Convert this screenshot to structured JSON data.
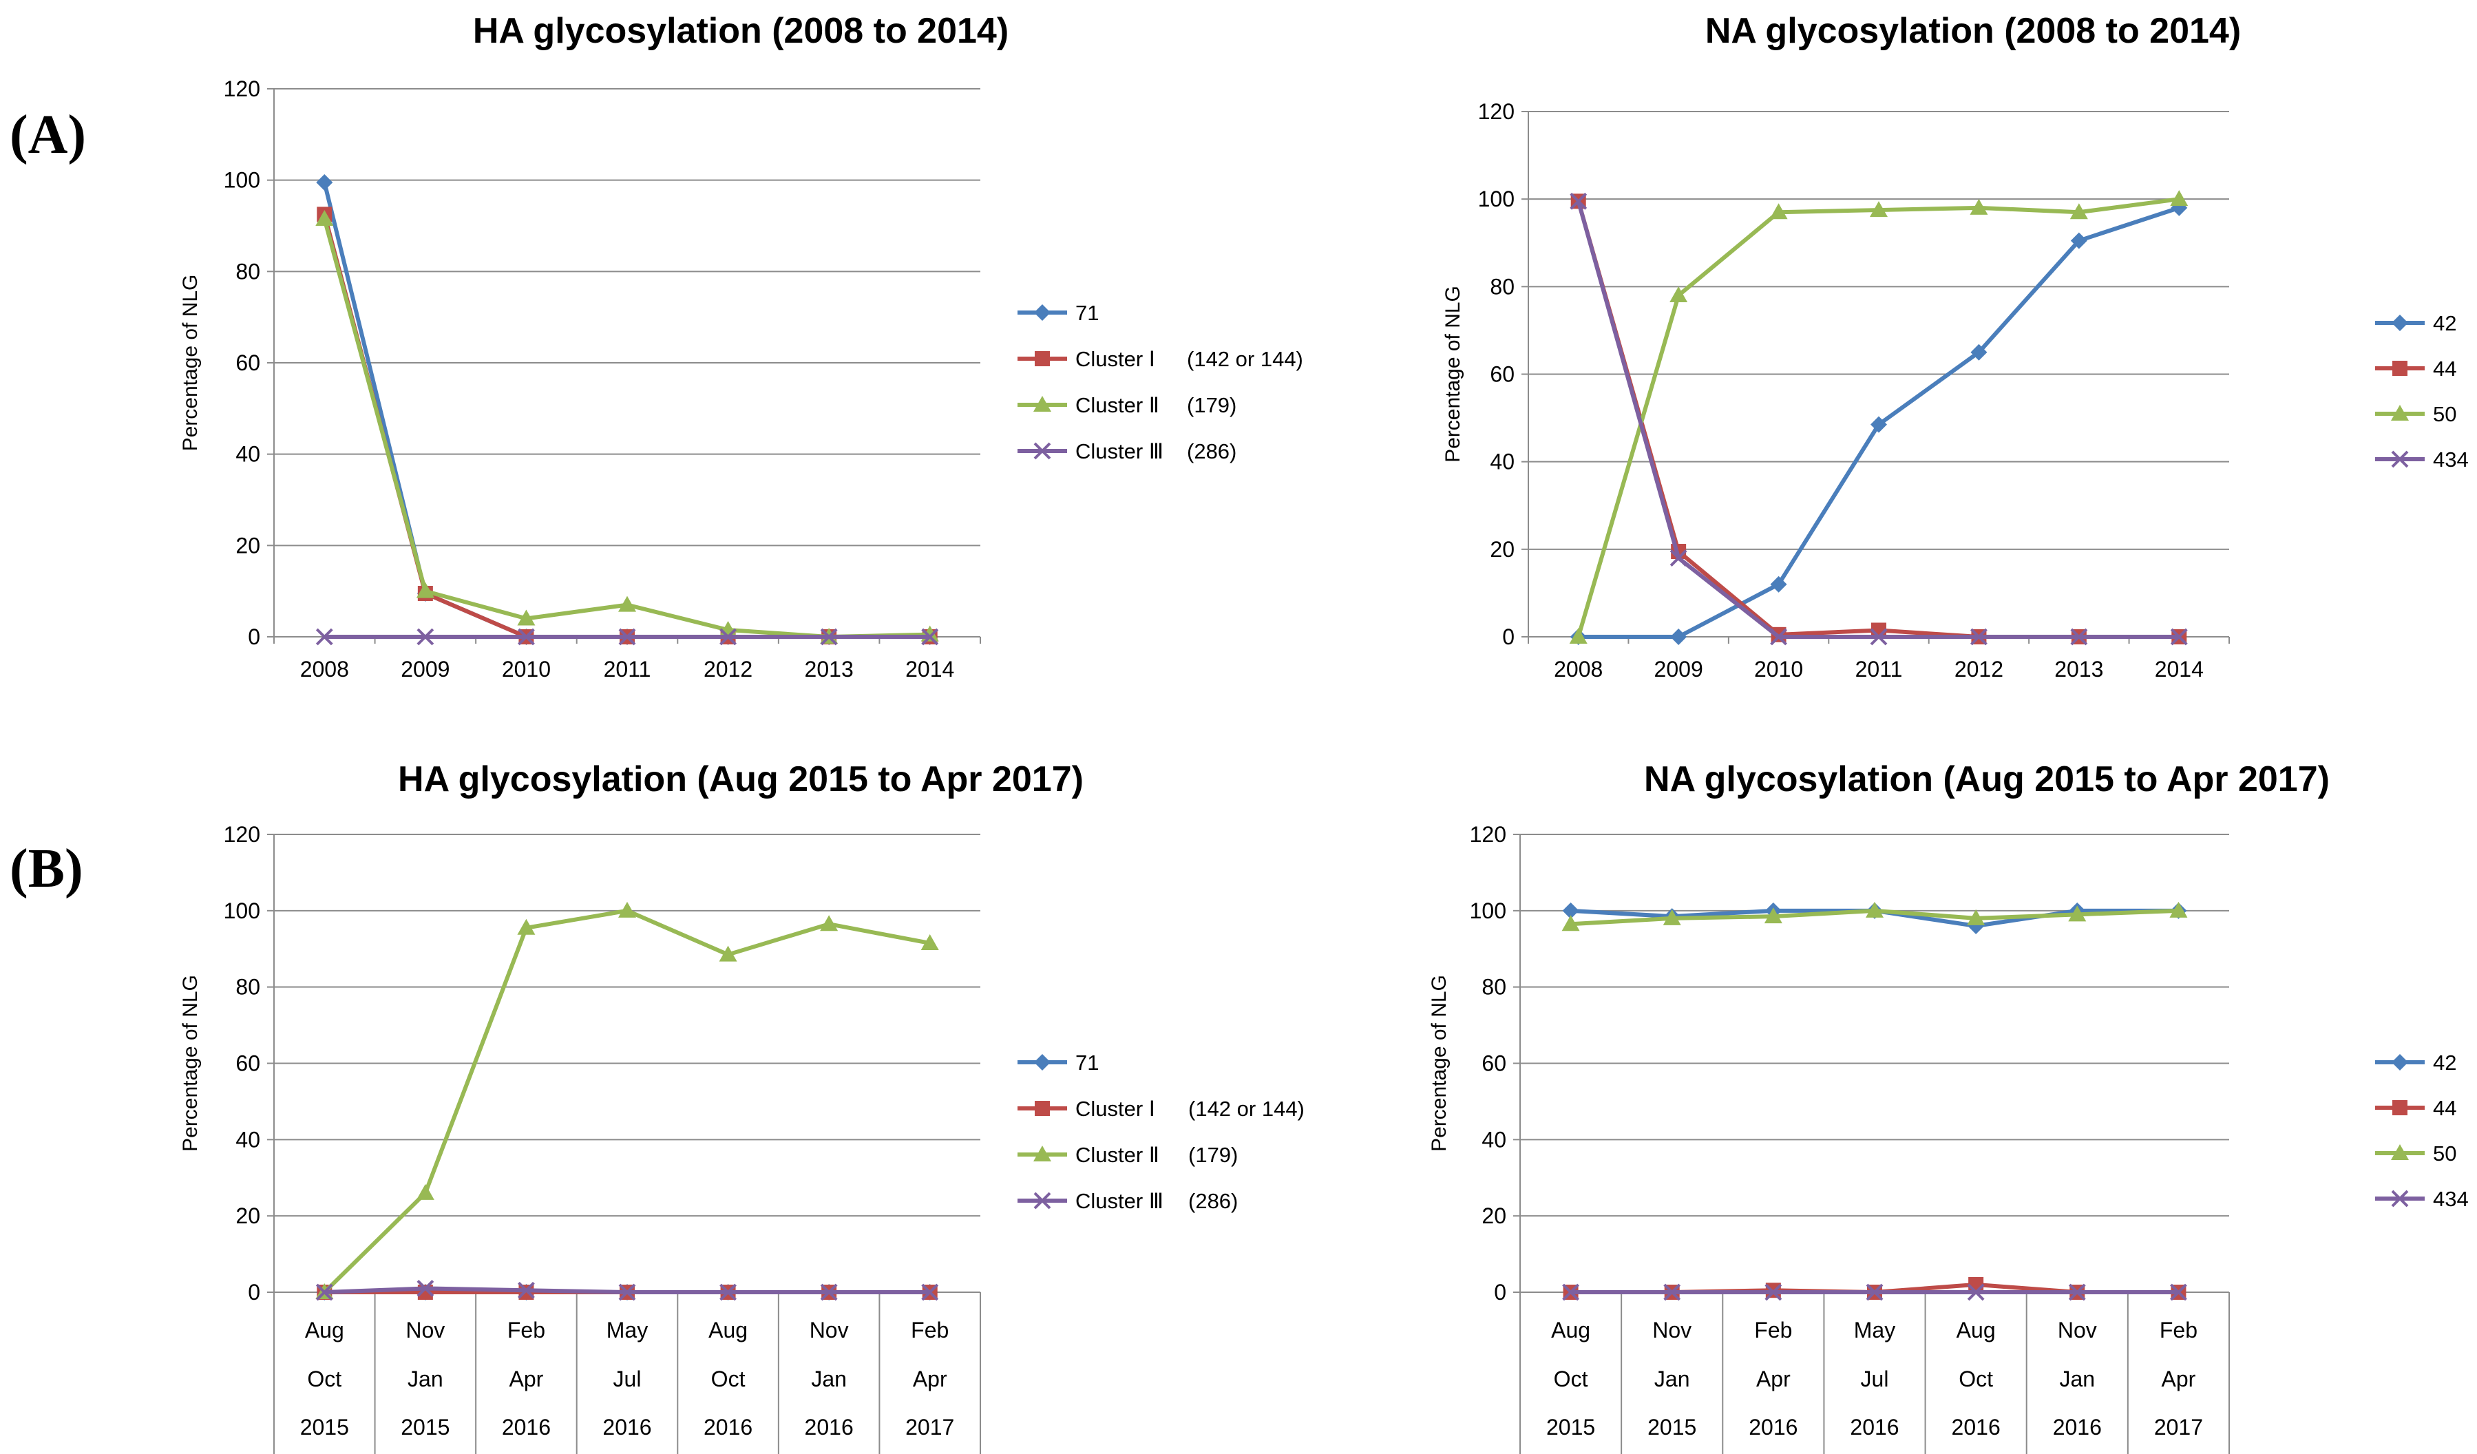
{
  "panels": {
    "a": "(A)",
    "b": "(B)"
  },
  "chart_data": [
    {
      "id": "ha1",
      "type": "line",
      "title": "HA glycosylation (2008 to 2014)",
      "ylabel": "Percentage of NLG",
      "xlabel": "",
      "ylim": [
        0,
        120
      ],
      "yticks": [
        0,
        20,
        40,
        60,
        80,
        100,
        120
      ],
      "categories": [
        "2008",
        "2009",
        "2010",
        "2011",
        "2012",
        "2013",
        "2014"
      ],
      "series": [
        {
          "name": "71",
          "color": "#4a7ebb",
          "marker": "diamond",
          "values": [
            99.5,
            9.5,
            0,
            0,
            0,
            0,
            0
          ]
        },
        {
          "name": "Cluster Ⅰ",
          "detail": "(142 or 144)",
          "color": "#be4b48",
          "marker": "square",
          "values": [
            92.5,
            9.5,
            0,
            0,
            0,
            0,
            0
          ]
        },
        {
          "name": "Cluster Ⅱ",
          "detail": "(179)",
          "color": "#98b954",
          "marker": "triangle",
          "values": [
            91.5,
            10,
            4,
            7,
            1.5,
            0,
            0.5
          ]
        },
        {
          "name": "Cluster Ⅲ",
          "detail": "(286)",
          "color": "#7d60a0",
          "marker": "x",
          "values": [
            0,
            0,
            0,
            0,
            0,
            0,
            0
          ]
        }
      ]
    },
    {
      "id": "na1",
      "type": "line",
      "title": "NA glycosylation (2008 to 2014)",
      "ylabel": "Percentage of NLG",
      "xlabel": "",
      "ylim": [
        0,
        120
      ],
      "yticks": [
        0,
        20,
        40,
        60,
        80,
        100,
        120
      ],
      "categories": [
        "2008",
        "2009",
        "2010",
        "2011",
        "2012",
        "2013",
        "2014"
      ],
      "series": [
        {
          "name": "42",
          "detail": "",
          "color": "#4a7ebb",
          "marker": "diamond",
          "values": [
            0,
            0,
            12,
            48.5,
            65,
            90.5,
            98
          ]
        },
        {
          "name": "44",
          "detail": "",
          "color": "#be4b48",
          "marker": "square",
          "values": [
            99.5,
            19.5,
            0.5,
            1.5,
            0,
            0,
            0
          ]
        },
        {
          "name": "50",
          "detail": "",
          "color": "#98b954",
          "marker": "triangle",
          "values": [
            0,
            78,
            97,
            97.5,
            98,
            97,
            100
          ]
        },
        {
          "name": "434",
          "detail": "",
          "color": "#7d60a0",
          "marker": "x",
          "values": [
            99.5,
            18,
            0,
            0,
            0,
            0,
            0
          ]
        }
      ]
    },
    {
      "id": "ha2",
      "type": "line",
      "title": "HA glycosylation (Aug 2015 to Apr 2017)",
      "ylabel": "Percentage of NLG",
      "xlabel": "",
      "ylim": [
        0,
        120
      ],
      "yticks": [
        0,
        20,
        40,
        60,
        80,
        100,
        120
      ],
      "categories": [
        {
          "line1": "Aug",
          "line2": "Oct",
          "line3": "2015"
        },
        {
          "line1": "Nov",
          "line2": "Jan",
          "line3": "2015"
        },
        {
          "line1": "Feb",
          "line2": "Apr",
          "line3": "2016"
        },
        {
          "line1": "May",
          "line2": "Jul",
          "line3": "2016"
        },
        {
          "line1": "Aug",
          "line2": "Oct",
          "line3": "2016"
        },
        {
          "line1": "Nov",
          "line2": "Jan",
          "line3": "2016"
        },
        {
          "line1": "Feb",
          "line2": "Apr",
          "line3": "2017"
        }
      ],
      "series": [
        {
          "name": "71",
          "detail": "",
          "color": "#4a7ebb",
          "marker": "diamond",
          "values": [
            0,
            0,
            0,
            0,
            0,
            0,
            0
          ]
        },
        {
          "name": "Cluster Ⅰ",
          "detail": "(142 or 144)",
          "color": "#be4b48",
          "marker": "square",
          "values": [
            0,
            0,
            0,
            0,
            0,
            0,
            0
          ]
        },
        {
          "name": "Cluster Ⅱ",
          "detail": "(179)",
          "color": "#98b954",
          "marker": "triangle",
          "values": [
            0,
            26,
            95.5,
            100,
            88.5,
            96.5,
            91.5
          ]
        },
        {
          "name": "Cluster Ⅲ",
          "detail": "(286)",
          "color": "#7d60a0",
          "marker": "x",
          "values": [
            0,
            1,
            0.5,
            0,
            0,
            0,
            0
          ]
        }
      ]
    },
    {
      "id": "na2",
      "type": "line",
      "title": "NA glycosylation (Aug 2015 to Apr 2017)",
      "ylabel": "Percentage of NLG",
      "xlabel": "",
      "ylim": [
        0,
        120
      ],
      "yticks": [
        0,
        20,
        40,
        60,
        80,
        100,
        120
      ],
      "categories": [
        {
          "line1": "Aug",
          "line2": "Oct",
          "line3": "2015"
        },
        {
          "line1": "Nov",
          "line2": "Jan",
          "line3": "2015"
        },
        {
          "line1": "Feb",
          "line2": "Apr",
          "line3": "2016"
        },
        {
          "line1": "May",
          "line2": "Jul",
          "line3": "2016"
        },
        {
          "line1": "Aug",
          "line2": "Oct",
          "line3": "2016"
        },
        {
          "line1": "Nov",
          "line2": "Jan",
          "line3": "2016"
        },
        {
          "line1": "Feb",
          "line2": "Apr",
          "line3": "2017"
        }
      ],
      "series": [
        {
          "name": "42",
          "detail": "",
          "color": "#4a7ebb",
          "marker": "diamond",
          "values": [
            100,
            98.5,
            100,
            100,
            96,
            100,
            100
          ]
        },
        {
          "name": "44",
          "detail": "",
          "color": "#be4b48",
          "marker": "square",
          "values": [
            0,
            0,
            0.5,
            0,
            2,
            0,
            0
          ]
        },
        {
          "name": "50",
          "detail": "",
          "color": "#98b954",
          "marker": "triangle",
          "values": [
            96.5,
            98,
            98.5,
            100,
            98,
            99,
            100
          ]
        },
        {
          "name": "434",
          "detail": "",
          "color": "#7d60a0",
          "marker": "x",
          "values": [
            0,
            0,
            0,
            0,
            0,
            0,
            0
          ]
        }
      ]
    }
  ]
}
